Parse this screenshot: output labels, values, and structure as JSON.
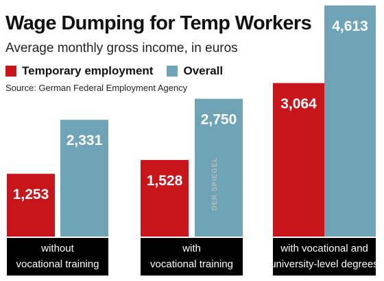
{
  "header": {
    "title": "Wage Dumping for Temp Workers",
    "subtitle": "Average monthly gross income, in euros",
    "source": "Source: German Federal Employment Agency",
    "watermark": "DER SPIEGEL"
  },
  "colors": {
    "temporary": "#c8151b",
    "overall": "#6fa4b6",
    "category_band": "#000000",
    "category_text": "#ffffff",
    "value_text": "#ffffff"
  },
  "chart_data": {
    "type": "bar",
    "title": "Wage Dumping for Temp Workers",
    "subtitle": "Average monthly gross income, in euros",
    "xlabel": "",
    "ylabel": "",
    "ylim": [
      0,
      4613
    ],
    "grid": false,
    "legend": "top-left",
    "categories": [
      [
        "without",
        "vocational training"
      ],
      [
        "with",
        "vocational training"
      ],
      [
        "with vocational and",
        "university-level degrees"
      ]
    ],
    "series": [
      {
        "name": "Temporary employment",
        "values": [
          1253,
          1528,
          3064
        ],
        "labels": [
          "1,253",
          "1,528",
          "3,064"
        ],
        "color": "#c8151b"
      },
      {
        "name": "Overall",
        "values": [
          2331,
          2750,
          4613
        ],
        "labels": [
          "2,331",
          "2,750",
          "4,613"
        ],
        "color": "#6fa4b6"
      }
    ]
  }
}
